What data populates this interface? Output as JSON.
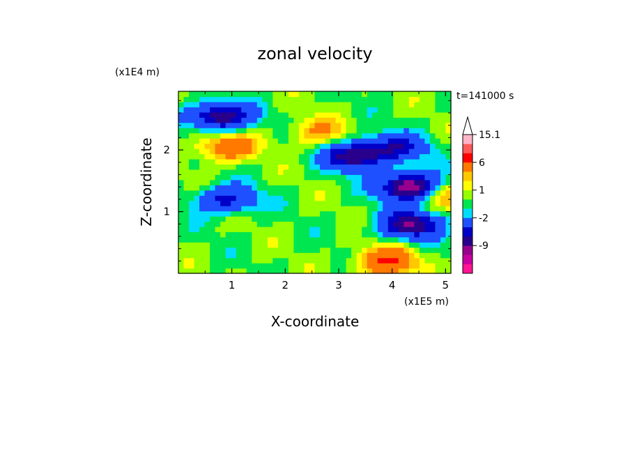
{
  "chart_data": {
    "type": "heatmap",
    "title": "zonal velocity",
    "xlabel": "X-coordinate",
    "ylabel": "Z-coordinate",
    "x_unit": "(x1E5 m)",
    "y_unit": "(x1E4 m)",
    "time_label": "t=141000 s",
    "xlim": [
      0,
      5.1
    ],
    "ylim": [
      0,
      2.95
    ],
    "x_ticks": [
      "1",
      "2",
      "3",
      "4",
      "5"
    ],
    "y_ticks": [
      "1",
      "2"
    ],
    "colorbar": {
      "labels": [
        "15.1",
        "6",
        "1",
        "-2",
        "-9"
      ],
      "levels": [
        -13,
        -11,
        -9,
        -7,
        -5,
        -2,
        -1,
        0,
        1,
        2,
        3,
        6,
        9,
        12,
        15.1
      ],
      "colors": [
        "#ff1493",
        "#c800a0",
        "#96008c",
        "#28008c",
        "#0000c8",
        "#1e50ff",
        "#00dcff",
        "#00e650",
        "#96ff00",
        "#ffff00",
        "#ffc800",
        "#ff7800",
        "#ff0000",
        "#ff5a5a",
        "#ffb4c8"
      ]
    },
    "features": [
      {
        "x": 0.8,
        "z": 2.55,
        "u": -9
      },
      {
        "x": 3.3,
        "z": 1.9,
        "u": -9
      },
      {
        "x": 4.1,
        "z": 2.05,
        "u": -6
      },
      {
        "x": 0.9,
        "z": 1.2,
        "u": -6
      },
      {
        "x": 4.35,
        "z": 0.8,
        "u": -9
      },
      {
        "x": 4.35,
        "z": 1.4,
        "u": -12
      },
      {
        "x": 0.9,
        "z": 2.05,
        "u": 5
      },
      {
        "x": 2.6,
        "z": 2.3,
        "u": 3
      },
      {
        "x": 3.9,
        "z": 0.2,
        "u": 6
      },
      {
        "x": 4.9,
        "z": 1.3,
        "u": 4
      }
    ]
  }
}
